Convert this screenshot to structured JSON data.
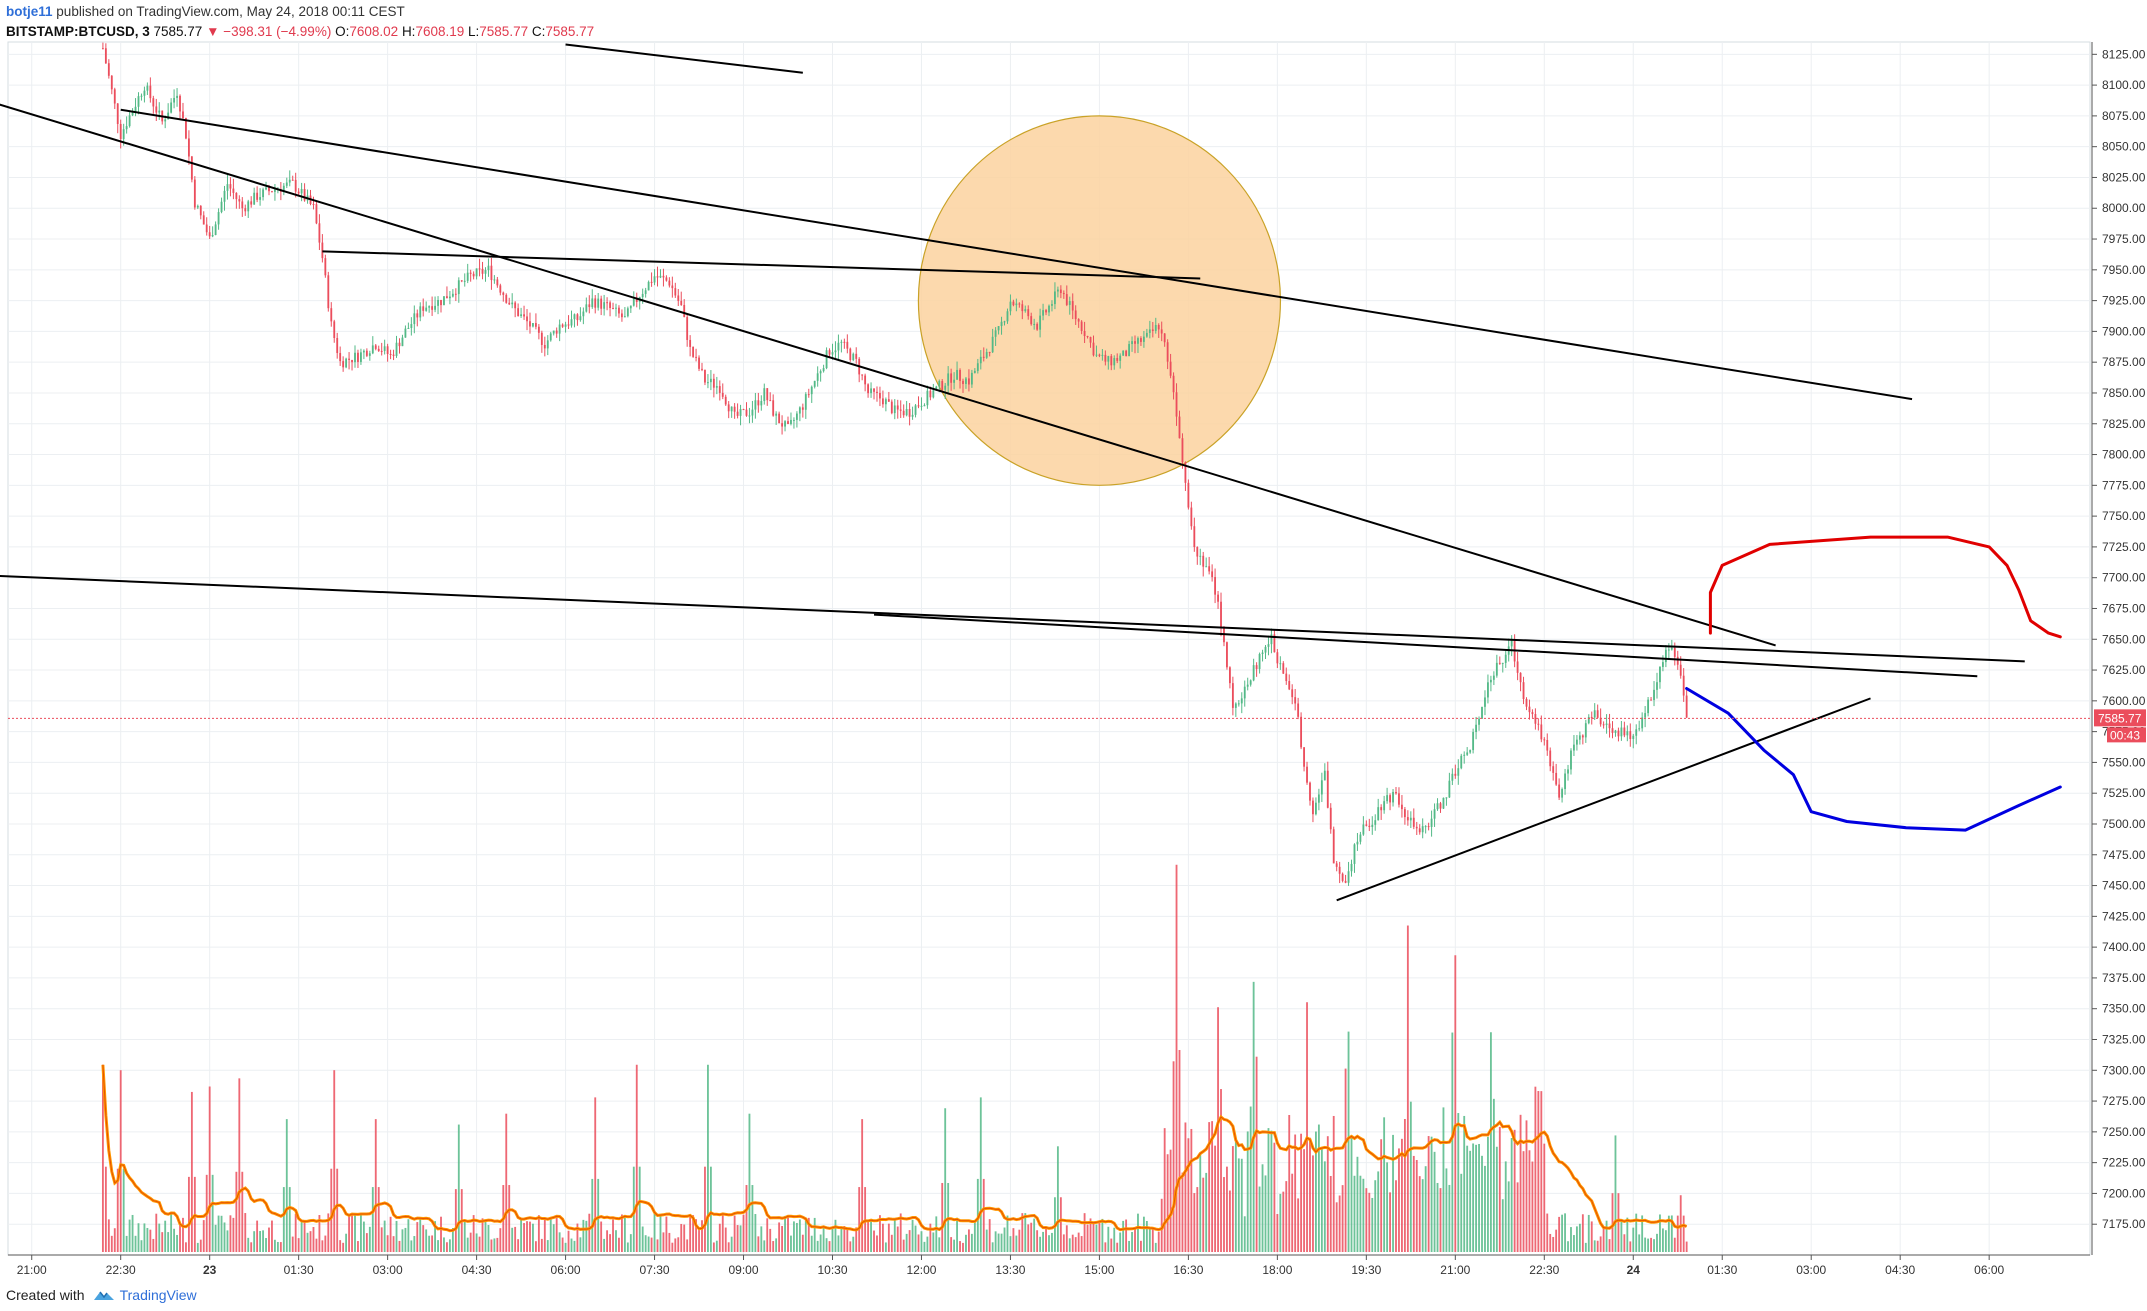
{
  "header": {
    "author": "botje11",
    "published": "published on TradingView.com, May 24, 2018 00:11 CEST",
    "symbol": "BITSTAMP:BTCUSD, 3",
    "last": "7585.77",
    "change_arrow": "▼",
    "change": "−398.31 (−4.99%)",
    "o_label": "O:",
    "o_value": "7608.02",
    "h_label": "H:",
    "h_value": "7608.19",
    "l_label": "L:",
    "l_value": "7585.77",
    "c_label": "C:",
    "c_value": "7585.77"
  },
  "footer": {
    "created_with": "Created with",
    "brand": "TradingView",
    "brand_icon": "tradingview-logo-icon"
  },
  "colors": {
    "up": "#53b987",
    "down": "#eb4d5c",
    "ma": "#ff9800",
    "ma_inner": "#e65100",
    "grid": "#eceff2",
    "circle_fill": "#fcd29f",
    "circle_stroke": "#c9a227",
    "forecast_up": "#e00000",
    "forecast_down": "#0000e0",
    "price_label_bg": "#eb4d5c"
  },
  "chart_data": {
    "type": "candlestick",
    "interval": "3 minutes",
    "y_axis": {
      "min": 7150,
      "max": 8135,
      "ticks": [
        "8125.00",
        "8100.00",
        "8075.00",
        "8050.00",
        "8025.00",
        "8000.00",
        "7975.00",
        "7950.00",
        "7925.00",
        "7900.00",
        "7875.00",
        "7850.00",
        "7825.00",
        "7800.00",
        "7775.00",
        "7750.00",
        "7725.00",
        "7700.00",
        "7675.00",
        "7650.00",
        "7625.00",
        "7600.00",
        "7575.00",
        "7550.00",
        "7525.00",
        "7500.00",
        "7475.00",
        "7450.00",
        "7425.00",
        "7400.00",
        "7375.00",
        "7350.00",
        "7325.00",
        "7300.00",
        "7275.00",
        "7250.00",
        "7225.00",
        "7200.00",
        "7175.00"
      ]
    },
    "x_axis": {
      "ticks": [
        "21:00",
        "22:30",
        "23",
        "01:30",
        "03:00",
        "04:30",
        "06:00",
        "07:30",
        "09:00",
        "10:30",
        "12:00",
        "13:30",
        "15:00",
        "16:30",
        "18:00",
        "19:30",
        "21:00",
        "22:30",
        "24",
        "01:30",
        "03:00",
        "04:30",
        "06:00"
      ],
      "bold_ticks": [
        "23",
        "24"
      ]
    },
    "current_price": {
      "label": "7585.77",
      "value": 7585.77,
      "countdown": "00:43"
    },
    "price_path": [
      [
        22.2,
        8130
      ],
      [
        22.35,
        8095
      ],
      [
        22.5,
        8060
      ],
      [
        22.7,
        8080
      ],
      [
        22.9,
        8100
      ],
      [
        23.2,
        8070
      ],
      [
        23.45,
        8095
      ],
      [
        23.6,
        8060
      ],
      [
        23.75,
        8005
      ],
      [
        24.0,
        7975
      ],
      [
        24.3,
        8020
      ],
      [
        24.55,
        8000
      ],
      [
        24.8,
        8010
      ],
      [
        25.05,
        8015
      ],
      [
        25.4,
        8020
      ],
      [
        25.75,
        8000
      ],
      [
        25.9,
        7960
      ],
      [
        26.05,
        7905
      ],
      [
        26.2,
        7875
      ],
      [
        26.5,
        7880
      ],
      [
        26.8,
        7890
      ],
      [
        27.05,
        7880
      ],
      [
        27.3,
        7900
      ],
      [
        27.6,
        7920
      ],
      [
        27.9,
        7925
      ],
      [
        28.15,
        7935
      ],
      [
        28.4,
        7945
      ],
      [
        28.7,
        7950
      ],
      [
        28.9,
        7935
      ],
      [
        29.1,
        7920
      ],
      [
        29.4,
        7905
      ],
      [
        29.65,
        7890
      ],
      [
        29.9,
        7905
      ],
      [
        30.2,
        7910
      ],
      [
        30.45,
        7925
      ],
      [
        30.7,
        7920
      ],
      [
        31.0,
        7910
      ],
      [
        31.25,
        7930
      ],
      [
        31.5,
        7945
      ],
      [
        31.75,
        7940
      ],
      [
        31.95,
        7920
      ],
      [
        32.1,
        7885
      ],
      [
        32.35,
        7860
      ],
      [
        32.6,
        7855
      ],
      [
        32.85,
        7830
      ],
      [
        33.1,
        7835
      ],
      [
        33.35,
        7850
      ],
      [
        33.55,
        7830
      ],
      [
        33.75,
        7820
      ],
      [
        34.0,
        7840
      ],
      [
        34.2,
        7860
      ],
      [
        34.45,
        7885
      ],
      [
        34.65,
        7890
      ],
      [
        34.9,
        7875
      ],
      [
        35.1,
        7850
      ],
      [
        35.35,
        7845
      ],
      [
        35.55,
        7835
      ],
      [
        35.8,
        7835
      ],
      [
        36.05,
        7845
      ],
      [
        36.3,
        7855
      ],
      [
        36.55,
        7865
      ],
      [
        36.8,
        7860
      ],
      [
        37.05,
        7880
      ],
      [
        37.3,
        7900
      ],
      [
        37.5,
        7925
      ],
      [
        37.75,
        7915
      ],
      [
        37.95,
        7905
      ],
      [
        38.15,
        7920
      ],
      [
        38.35,
        7935
      ],
      [
        38.55,
        7915
      ],
      [
        38.75,
        7900
      ],
      [
        38.95,
        7880
      ],
      [
        39.15,
        7875
      ],
      [
        39.4,
        7880
      ],
      [
        39.6,
        7890
      ],
      [
        39.8,
        7895
      ],
      [
        40.0,
        7905
      ],
      [
        40.15,
        7880
      ],
      [
        40.3,
        7835
      ],
      [
        40.45,
        7780
      ],
      [
        40.6,
        7725
      ],
      [
        40.8,
        7710
      ],
      [
        40.95,
        7690
      ],
      [
        41.1,
        7650
      ],
      [
        41.25,
        7590
      ],
      [
        41.45,
        7610
      ],
      [
        41.65,
        7630
      ],
      [
        41.9,
        7650
      ],
      [
        42.1,
        7620
      ],
      [
        42.3,
        7600
      ],
      [
        42.45,
        7550
      ],
      [
        42.6,
        7510
      ],
      [
        42.8,
        7540
      ],
      [
        42.95,
        7470
      ],
      [
        43.15,
        7455
      ],
      [
        43.35,
        7490
      ],
      [
        43.55,
        7500
      ],
      [
        43.8,
        7520
      ],
      [
        44.0,
        7525
      ],
      [
        44.2,
        7505
      ],
      [
        44.4,
        7490
      ],
      [
        44.6,
        7505
      ],
      [
        44.85,
        7525
      ],
      [
        45.05,
        7550
      ],
      [
        45.25,
        7560
      ],
      [
        45.4,
        7590
      ],
      [
        45.55,
        7615
      ],
      [
        45.75,
        7630
      ],
      [
        45.95,
        7645
      ],
      [
        46.15,
        7605
      ],
      [
        46.35,
        7585
      ],
      [
        46.55,
        7560
      ],
      [
        46.75,
        7525
      ],
      [
        46.95,
        7555
      ],
      [
        47.15,
        7575
      ],
      [
        47.35,
        7590
      ],
      [
        47.55,
        7580
      ],
      [
        47.75,
        7575
      ],
      [
        47.95,
        7570
      ],
      [
        48.15,
        7585
      ],
      [
        48.35,
        7610
      ],
      [
        48.5,
        7635
      ],
      [
        48.65,
        7645
      ],
      [
        48.8,
        7620
      ],
      [
        48.9,
        7586
      ]
    ],
    "volume": {
      "ma_label": "volume moving average",
      "max_value": 100,
      "peaks": [
        [
          22.2,
          60
        ],
        [
          22.5,
          58
        ],
        [
          23.7,
          50
        ],
        [
          24.0,
          52
        ],
        [
          24.5,
          55
        ],
        [
          25.3,
          40
        ],
        [
          26.1,
          58
        ],
        [
          26.8,
          40
        ],
        [
          28.2,
          38
        ],
        [
          29.0,
          42
        ],
        [
          30.5,
          48
        ],
        [
          31.2,
          60
        ],
        [
          32.4,
          60
        ],
        [
          33.1,
          42
        ],
        [
          35.0,
          40
        ],
        [
          36.4,
          44
        ],
        [
          37.0,
          48
        ],
        [
          38.3,
          30
        ],
        [
          40.3,
          100
        ],
        [
          41.0,
          48
        ],
        [
          41.6,
          76
        ],
        [
          42.5,
          52
        ],
        [
          43.2,
          50
        ],
        [
          44.2,
          72
        ],
        [
          45.0,
          88
        ],
        [
          45.6,
          48
        ],
        [
          46.4,
          40
        ],
        [
          47.7,
          34
        ],
        [
          48.8,
          12
        ]
      ]
    },
    "trendlines": [
      {
        "name": "long-resistance",
        "points": [
          [
            18.7,
            8110
          ],
          [
            50.4,
            7645
          ]
        ]
      },
      {
        "name": "short-resistance-top",
        "points": [
          [
            30.0,
            8133
          ],
          [
            34.0,
            8110
          ]
        ]
      },
      {
        "name": "range-top",
        "points": [
          [
            25.9,
            7965
          ],
          [
            40.7,
            7943
          ]
        ]
      },
      {
        "name": "descending-resistance",
        "points": [
          [
            22.5,
            8080
          ],
          [
            52.7,
            7845
          ]
        ]
      },
      {
        "name": "long-support",
        "points": [
          [
            18.7,
            7705
          ],
          [
            54.6,
            7632
          ]
        ]
      },
      {
        "name": "neckline",
        "points": [
          [
            35.2,
            7670
          ],
          [
            53.8,
            7620
          ]
        ]
      },
      {
        "name": "ascending-support",
        "points": [
          [
            43.0,
            7438
          ],
          [
            52.0,
            7602
          ]
        ]
      }
    ],
    "highlight_circle": {
      "center": [
        39.0,
        7925
      ],
      "radius_price": 150
    },
    "forecast_bullish": [
      [
        49.3,
        7655
      ],
      [
        49.3,
        7688
      ],
      [
        49.5,
        7710
      ],
      [
        50.3,
        7727
      ],
      [
        52.0,
        7733
      ],
      [
        53.3,
        7733
      ],
      [
        54.0,
        7725
      ],
      [
        54.3,
        7710
      ],
      [
        54.5,
        7690
      ],
      [
        54.7,
        7665
      ],
      [
        55.0,
        7655
      ],
      [
        55.2,
        7652
      ]
    ],
    "forecast_bearish": [
      [
        48.9,
        7610
      ],
      [
        49.6,
        7590
      ],
      [
        50.2,
        7560
      ],
      [
        50.7,
        7540
      ],
      [
        51.0,
        7510
      ],
      [
        51.6,
        7502
      ],
      [
        52.6,
        7497
      ],
      [
        53.6,
        7495
      ],
      [
        54.5,
        7515
      ],
      [
        55.2,
        7530
      ]
    ]
  }
}
